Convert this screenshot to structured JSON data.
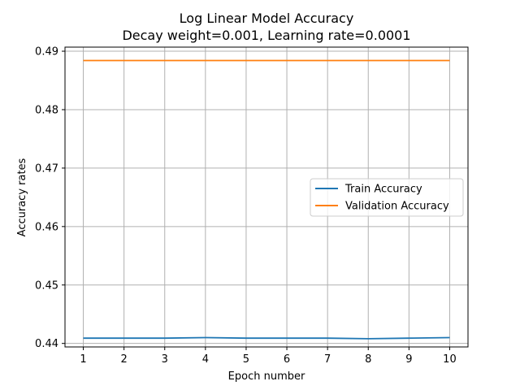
{
  "chart_data": {
    "type": "line",
    "title": "Log Linear Model Accuracy",
    "subtitle": "Decay weight=0.001, Learning rate=0.0001",
    "xlabel": "Epoch number",
    "ylabel": "Accuracy rates",
    "x": [
      1,
      2,
      3,
      4,
      5,
      6,
      7,
      8,
      9,
      10
    ],
    "xticks": [
      1,
      2,
      3,
      4,
      5,
      6,
      7,
      8,
      9,
      10
    ],
    "xlim": [
      0.55,
      10.45
    ],
    "yticks": [
      0.44,
      0.45,
      0.46,
      0.47,
      0.48,
      0.49
    ],
    "ytick_labels": [
      "0.44",
      "0.45",
      "0.46",
      "0.47",
      "0.48",
      "0.49"
    ],
    "ylim": [
      0.4394,
      0.4907
    ],
    "grid": true,
    "legend_position": "center-right",
    "series": [
      {
        "name": "Train Accuracy",
        "color": "#1f77b4",
        "values": [
          0.4409,
          0.4409,
          0.4409,
          0.441,
          0.4409,
          0.4409,
          0.4409,
          0.4408,
          0.4409,
          0.441
        ]
      },
      {
        "name": "Validation Accuracy",
        "color": "#ff7f0e",
        "values": [
          0.4884,
          0.4884,
          0.4884,
          0.4884,
          0.4884,
          0.4884,
          0.4884,
          0.4884,
          0.4884,
          0.4884
        ]
      }
    ]
  }
}
